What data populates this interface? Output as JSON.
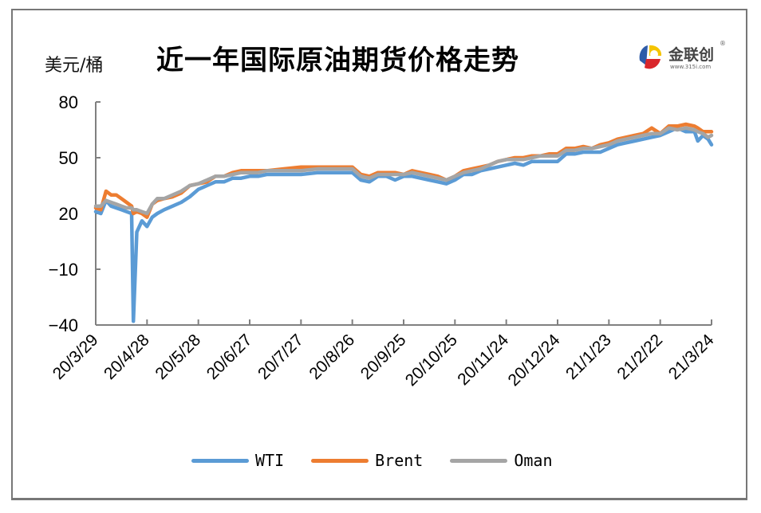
{
  "title": "近一年国际原油期货价格走势",
  "unit_label": "美元/桶",
  "logo": {
    "name": "金联创",
    "url": "www.315i.com",
    "reg": "®"
  },
  "colors": {
    "WTI": "#5B9BD5",
    "Brent": "#ED7D31",
    "Oman": "#A5A5A5",
    "axis": "#808080",
    "frame": "#777777"
  },
  "legend": [
    {
      "label": "WTI",
      "color": "#5B9BD5"
    },
    {
      "label": "Brent",
      "color": "#ED7D31"
    },
    {
      "label": "Oman",
      "color": "#A5A5A5"
    }
  ],
  "chart_data": {
    "type": "line",
    "title": "近一年国际原油期货价格走势",
    "xlabel": "",
    "ylabel": "美元/桶",
    "ylim": [
      -40,
      80
    ],
    "yticks": [
      80,
      50,
      20,
      -10,
      -40
    ],
    "grid": false,
    "legend_position": "bottom",
    "x_tick_labels": [
      "20/3/29",
      "20/4/28",
      "20/5/28",
      "20/6/27",
      "20/7/27",
      "20/8/26",
      "20/9/25",
      "20/10/25",
      "20/11/24",
      "20/12/24",
      "21/1/23",
      "21/2/22",
      "21/3/24"
    ],
    "x_days": [
      0,
      3,
      6,
      9,
      12,
      15,
      18,
      21,
      22,
      24,
      27,
      30,
      33,
      36,
      40,
      45,
      50,
      55,
      60,
      65,
      70,
      75,
      80,
      85,
      90,
      95,
      100,
      110,
      120,
      130,
      140,
      150,
      155,
      160,
      165,
      170,
      175,
      180,
      185,
      190,
      195,
      200,
      205,
      210,
      215,
      220,
      225,
      230,
      235,
      240,
      245,
      250,
      255,
      260,
      265,
      270,
      275,
      280,
      285,
      290,
      295,
      300,
      305,
      310,
      315,
      320,
      325,
      330,
      335,
      340,
      345,
      350,
      352,
      355,
      358,
      360
    ],
    "series": [
      {
        "name": "WTI",
        "values": [
          21,
          20,
          27,
          24,
          23,
          22,
          21,
          20,
          -38,
          10,
          16,
          13,
          18,
          20,
          22,
          24,
          26,
          29,
          33,
          35,
          37,
          37,
          39,
          39,
          40,
          40,
          41,
          41,
          41,
          42,
          42,
          42,
          38,
          37,
          40,
          40,
          38,
          40,
          40,
          39,
          38,
          37,
          36,
          38,
          41,
          41,
          43,
          44,
          45,
          46,
          47,
          46,
          48,
          48,
          48,
          48,
          52,
          52,
          53,
          53,
          53,
          55,
          57,
          58,
          59,
          60,
          61,
          62,
          64,
          66,
          64,
          64,
          59,
          62,
          60,
          57
        ]
      },
      {
        "name": "Brent",
        "values": [
          23,
          22,
          32,
          30,
          30,
          28,
          26,
          24,
          20,
          21,
          20,
          18,
          25,
          27,
          28,
          29,
          31,
          35,
          36,
          37,
          40,
          40,
          42,
          43,
          43,
          43,
          43,
          44,
          45,
          45,
          45,
          45,
          41,
          40,
          42,
          42,
          42,
          41,
          43,
          42,
          41,
          40,
          38,
          40,
          43,
          44,
          45,
          46,
          48,
          49,
          50,
          50,
          51,
          51,
          52,
          52,
          55,
          55,
          56,
          55,
          57,
          58,
          60,
          61,
          62,
          63,
          66,
          63,
          67,
          67,
          68,
          67,
          66,
          64,
          64,
          64
        ]
      },
      {
        "name": "Oman",
        "values": [
          24,
          24,
          27,
          26,
          25,
          24,
          23,
          23,
          22,
          22,
          21,
          20,
          25,
          28,
          28,
          30,
          32,
          35,
          36,
          38,
          40,
          40,
          41,
          42,
          42,
          42,
          43,
          43,
          43,
          44,
          44,
          44,
          40,
          39,
          41,
          41,
          41,
          41,
          42,
          41,
          40,
          39,
          38,
          40,
          42,
          43,
          44,
          46,
          48,
          49,
          49,
          49,
          50,
          51,
          51,
          51,
          54,
          54,
          55,
          55,
          56,
          57,
          59,
          60,
          61,
          62,
          63,
          63,
          66,
          65,
          66,
          65,
          64,
          63,
          61,
          62
        ]
      }
    ]
  }
}
